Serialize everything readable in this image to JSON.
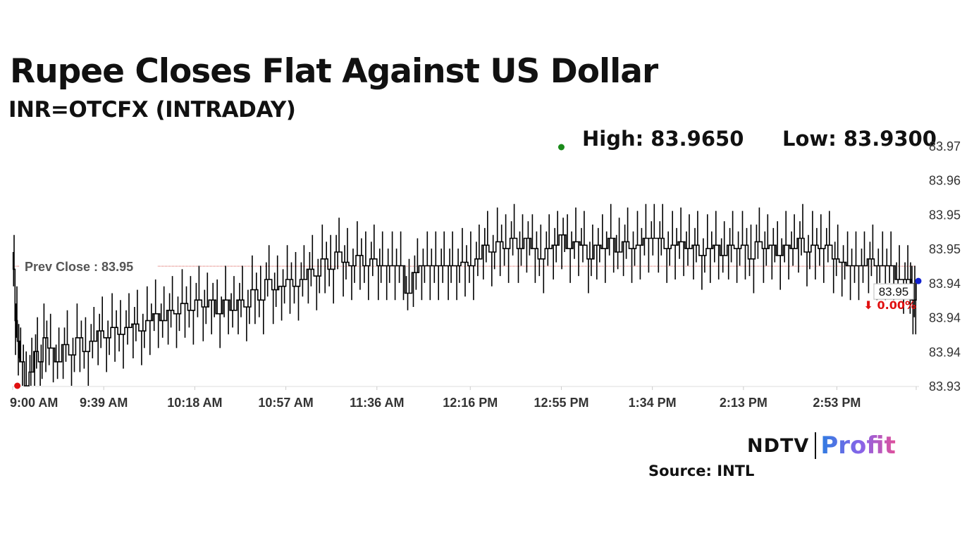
{
  "header": {
    "title": "Rupee Closes Flat Against US Dollar",
    "subtitle": "INR=OTCFX (INTRADAY)",
    "high_text": "High: 83.9650",
    "low_text": "Low: 83.9300"
  },
  "brand": {
    "ndtv": "NDTV",
    "profit": "Profit",
    "source": "Source: INTL"
  },
  "colors": {
    "line": "#000000",
    "prev_close": "#d9534f",
    "high_marker": "#1a8a1a",
    "low_marker": "#e01010",
    "last_marker": "#1020d0",
    "change": "#e01010",
    "axis_text": "#333333",
    "grid": "#dddddd"
  },
  "chart_data": {
    "type": "line",
    "title": "INR=OTCFX (INTRADAY)",
    "xlabel": "",
    "ylabel": "",
    "ylim": [
      83.93,
      83.965
    ],
    "y_ticks": [
      83.93,
      83.935,
      83.94,
      83.945,
      83.95,
      83.955,
      83.96,
      83.965
    ],
    "y_tick_labels": [
      "83.93",
      "83.94",
      "83.94",
      "83.94",
      "83.95",
      "83.95",
      "83.96",
      "83.97"
    ],
    "x_tick_labels": [
      "9:00 AM",
      "9:39 AM",
      "10:18 AM",
      "10:57 AM",
      "11:36 AM",
      "12:16 PM",
      "12:55 PM",
      "1:34 PM",
      "2:13 PM",
      "2:53 PM"
    ],
    "x_ticks_minutes": [
      0,
      39,
      78,
      117,
      156,
      196,
      235,
      274,
      313,
      353
    ],
    "xlim_minutes": [
      0,
      387
    ],
    "series": [
      {
        "name": "INR=OTCFX",
        "minutes": [
          0,
          1,
          2,
          3,
          5,
          7,
          9,
          11,
          13,
          15,
          18,
          21,
          24,
          27,
          30,
          33,
          36,
          39,
          42,
          45,
          48,
          51,
          54,
          57,
          60,
          63,
          66,
          69,
          72,
          75,
          78,
          81,
          84,
          87,
          90,
          93,
          96,
          99,
          102,
          105,
          108,
          111,
          114,
          117,
          120,
          123,
          126,
          129,
          132,
          135,
          138,
          141,
          144,
          147,
          150,
          153,
          156,
          159,
          162,
          165,
          168,
          171,
          174,
          177,
          180,
          183,
          186,
          189,
          192,
          195,
          198,
          201,
          204,
          207,
          210,
          213,
          216,
          219,
          222,
          225,
          228,
          231,
          234,
          237,
          240,
          243,
          246,
          249,
          252,
          255,
          258,
          261,
          264,
          267,
          270,
          273,
          276,
          279,
          282,
          285,
          288,
          291,
          294,
          297,
          300,
          303,
          306,
          309,
          312,
          315,
          318,
          321,
          324,
          327,
          330,
          333,
          336,
          339,
          342,
          345,
          348,
          351,
          354,
          357,
          360,
          363,
          366,
          369,
          372,
          375,
          378,
          381,
          384,
          385,
          386,
          387
        ],
        "values": [
          83.947,
          83.9395,
          83.9365,
          83.9335,
          83.93,
          83.932,
          83.935,
          83.9335,
          83.937,
          83.9355,
          83.9335,
          83.936,
          83.9345,
          83.937,
          83.935,
          83.9365,
          83.938,
          83.937,
          83.9385,
          83.9375,
          83.9385,
          83.939,
          83.938,
          83.9395,
          83.9405,
          83.9395,
          83.941,
          83.9405,
          83.942,
          83.941,
          83.9425,
          83.9415,
          83.9425,
          83.9405,
          83.9425,
          83.941,
          83.9425,
          83.9415,
          83.944,
          83.9425,
          83.9455,
          83.944,
          83.9445,
          83.9455,
          83.9445,
          83.9455,
          83.947,
          83.946,
          83.9485,
          83.947,
          83.9495,
          83.948,
          83.9475,
          83.949,
          83.9475,
          83.9485,
          83.9475,
          83.9475,
          83.9475,
          83.9475,
          83.9435,
          83.9465,
          83.9475,
          83.9475,
          83.9475,
          83.9475,
          83.9475,
          83.9475,
          83.948,
          83.9475,
          83.9485,
          83.9505,
          83.9495,
          83.951,
          83.95,
          83.9515,
          83.95,
          83.9515,
          83.95,
          83.9485,
          83.95,
          83.9505,
          83.952,
          83.95,
          83.951,
          83.9505,
          83.9485,
          83.9505,
          83.95,
          83.9515,
          83.9495,
          83.951,
          83.95,
          83.9505,
          83.9515,
          83.9515,
          83.9515,
          83.95,
          83.9505,
          83.951,
          83.95,
          83.9505,
          83.949,
          83.95,
          83.9505,
          83.949,
          83.9505,
          83.95,
          83.9505,
          83.9485,
          83.951,
          83.95,
          83.9505,
          83.949,
          83.9505,
          83.95,
          83.9515,
          83.9495,
          83.9505,
          83.95,
          83.9505,
          83.9485,
          83.948,
          83.9475,
          83.9475,
          83.9475,
          83.9485,
          83.9475,
          83.9475,
          83.9475,
          83.9455,
          83.9455,
          83.9455,
          83.9425,
          83.9425,
          83.9455
        ]
      }
    ],
    "prev_close": {
      "value": 83.95,
      "label": "Prev Close : 83.95"
    },
    "high": {
      "value": 83.965,
      "minute": 235
    },
    "low": {
      "value": 83.93,
      "minute": 2
    },
    "last": {
      "value": 83.95,
      "label": "83.95",
      "change": "⬇ 0.00%"
    }
  }
}
